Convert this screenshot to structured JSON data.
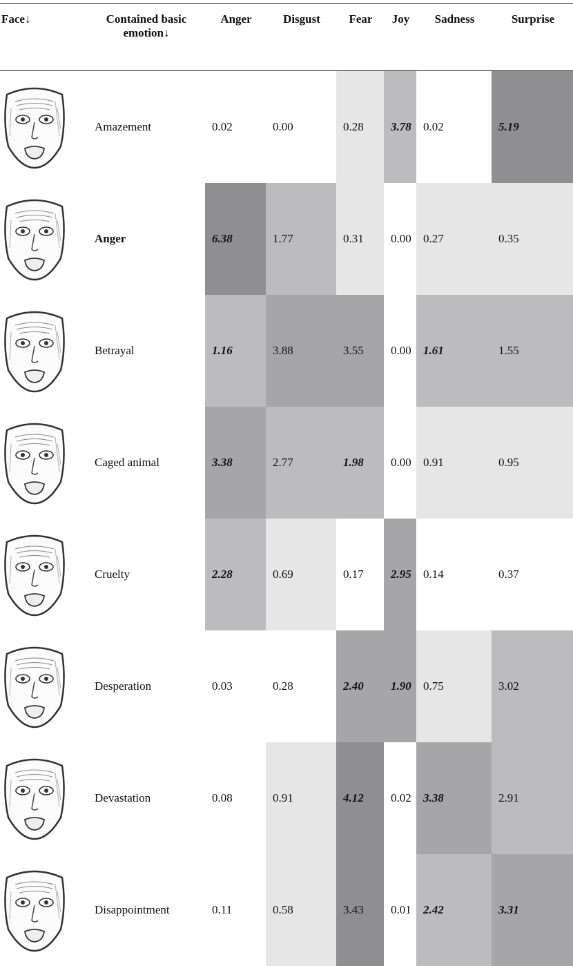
{
  "header": [
    "Face↓",
    "Contained basic emotion↓",
    "Anger",
    "Disgust",
    "Fear",
    "Joy",
    "Sadness",
    "Surprise"
  ],
  "rows": [
    {
      "emotion": "Amazement",
      "values": [
        "0.02",
        "0.00",
        "0.28",
        "3.78",
        "0.02",
        "5.19"
      ]
    },
    {
      "emotion": "Anger",
      "values": [
        "6.38",
        "1.77",
        "0.31",
        "0.00",
        "0.27",
        "0.35"
      ]
    },
    {
      "emotion": "Betrayal",
      "values": [
        "1.16",
        "3.88",
        "3.55",
        "0.00",
        "1.61",
        "1.55"
      ]
    },
    {
      "emotion": "Caged animal",
      "values": [
        "3.38",
        "2.77",
        "1.98",
        "0.00",
        "0.91",
        "0.95"
      ]
    },
    {
      "emotion": "Cruelty",
      "values": [
        "2.28",
        "0.69",
        "0.17",
        "2.95",
        "0.14",
        "0.37"
      ]
    },
    {
      "emotion": "Desperation",
      "values": [
        "0.03",
        "0.28",
        "2.40",
        "1.90",
        "0.75",
        "3.02"
      ]
    },
    {
      "emotion": "Devastation",
      "values": [
        "0.08",
        "0.91",
        "4.12",
        "0.02",
        "3.38",
        "2.91"
      ]
    },
    {
      "emotion": "Disappointment",
      "values": [
        "0.11",
        "0.58",
        "3.43",
        "0.01",
        "2.42",
        "3.31"
      ]
    }
  ]
}
